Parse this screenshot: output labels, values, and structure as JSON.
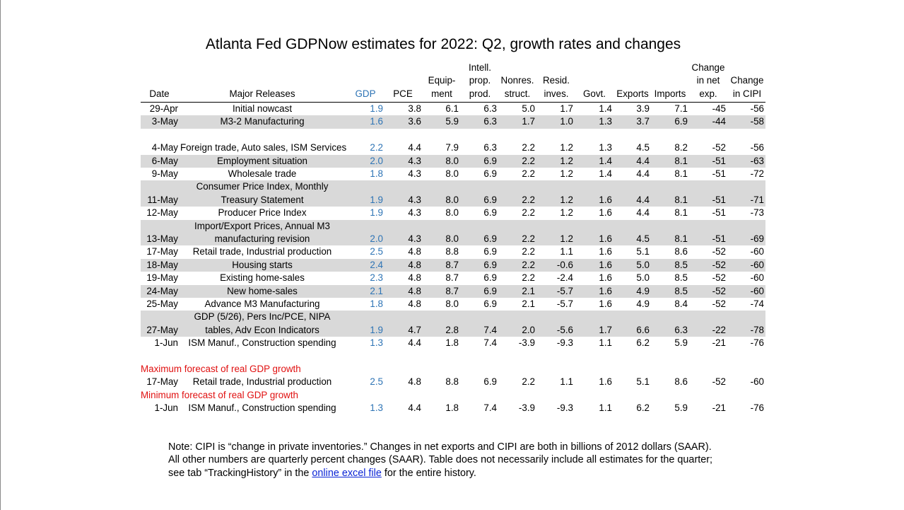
{
  "title": "Atlanta Fed GDPNow estimates for 2022: Q2, growth rates and changes",
  "colors": {
    "gdp": "#2e74b5",
    "label_red": "#e01010",
    "shade": "#d9d9d9",
    "link": "#0b25d6"
  },
  "table": {
    "headers": {
      "date": "Date",
      "release": "Major Releases",
      "gdp": "GDP",
      "pce": "PCE",
      "equip": "Equip-\nment",
      "intell": "Intell.\nprop.\nprod.",
      "nonres": "Nonres.\nstruct.",
      "resid": "Resid.\ninves.",
      "govt": "Govt.",
      "exports": "Exports",
      "imports": "Imports",
      "netexp": "Change\nin net\nexp.",
      "cipi": "Change\nin CIPI"
    },
    "rows": [
      {
        "date": "29-Apr",
        "release": "Initial nowcast",
        "gdp": "1.9",
        "pce": "3.8",
        "equip": "6.1",
        "intell": "6.3",
        "nonres": "5.0",
        "resid": "1.7",
        "govt": "1.4",
        "exports": "3.9",
        "imports": "7.1",
        "netexp": "-45",
        "cipi": "-56"
      },
      {
        "date": "3-May",
        "release": "M3-2 Manufacturing",
        "gdp": "1.6",
        "pce": "3.6",
        "equip": "5.9",
        "intell": "6.3",
        "nonres": "1.7",
        "resid": "1.0",
        "govt": "1.3",
        "exports": "3.7",
        "imports": "6.9",
        "netexp": "-44",
        "cipi": "-58"
      },
      {
        "date": "4-May",
        "release": "Foreign trade, Auto sales, ISM Services",
        "gdp": "2.2",
        "pce": "4.4",
        "equip": "7.9",
        "intell": "6.3",
        "nonres": "2.2",
        "resid": "1.2",
        "govt": "1.3",
        "exports": "4.5",
        "imports": "8.2",
        "netexp": "-52",
        "cipi": "-56"
      },
      {
        "date": "6-May",
        "release": "Employment situation",
        "gdp": "2.0",
        "pce": "4.3",
        "equip": "8.0",
        "intell": "6.9",
        "nonres": "2.2",
        "resid": "1.2",
        "govt": "1.4",
        "exports": "4.4",
        "imports": "8.1",
        "netexp": "-51",
        "cipi": "-63"
      },
      {
        "date": "9-May",
        "release": "Wholesale trade",
        "gdp": "1.8",
        "pce": "4.3",
        "equip": "8.0",
        "intell": "6.9",
        "nonres": "2.2",
        "resid": "1.2",
        "govt": "1.4",
        "exports": "4.4",
        "imports": "8.1",
        "netexp": "-51",
        "cipi": "-72"
      },
      {
        "date": "11-May",
        "release": "Consumer Price Index, Monthly Treasury Statement",
        "gdp": "1.9",
        "pce": "4.3",
        "equip": "8.0",
        "intell": "6.9",
        "nonres": "2.2",
        "resid": "1.2",
        "govt": "1.6",
        "exports": "4.4",
        "imports": "8.1",
        "netexp": "-51",
        "cipi": "-71"
      },
      {
        "date": "12-May",
        "release": "Producer Price Index",
        "gdp": "1.9",
        "pce": "4.3",
        "equip": "8.0",
        "intell": "6.9",
        "nonres": "2.2",
        "resid": "1.2",
        "govt": "1.6",
        "exports": "4.4",
        "imports": "8.1",
        "netexp": "-51",
        "cipi": "-73"
      },
      {
        "date": "13-May",
        "release": "Import/Export Prices, Annual M3 manufacturing revision",
        "gdp": "2.0",
        "pce": "4.3",
        "equip": "8.0",
        "intell": "6.9",
        "nonres": "2.2",
        "resid": "1.2",
        "govt": "1.6",
        "exports": "4.5",
        "imports": "8.1",
        "netexp": "-51",
        "cipi": "-69"
      },
      {
        "date": "17-May",
        "release": "Retail trade, Industrial production",
        "gdp": "2.5",
        "pce": "4.8",
        "equip": "8.8",
        "intell": "6.9",
        "nonres": "2.2",
        "resid": "1.1",
        "govt": "1.6",
        "exports": "5.1",
        "imports": "8.6",
        "netexp": "-52",
        "cipi": "-60"
      },
      {
        "date": "18-May",
        "release": "Housing starts",
        "gdp": "2.4",
        "pce": "4.8",
        "equip": "8.7",
        "intell": "6.9",
        "nonres": "2.2",
        "resid": "-0.6",
        "govt": "1.6",
        "exports": "5.0",
        "imports": "8.5",
        "netexp": "-52",
        "cipi": "-60"
      },
      {
        "date": "19-May",
        "release": "Existing home-sales",
        "gdp": "2.3",
        "pce": "4.8",
        "equip": "8.7",
        "intell": "6.9",
        "nonres": "2.2",
        "resid": "-2.4",
        "govt": "1.6",
        "exports": "5.0",
        "imports": "8.5",
        "netexp": "-52",
        "cipi": "-60"
      },
      {
        "date": "24-May",
        "release": "New home-sales",
        "gdp": "2.1",
        "pce": "4.8",
        "equip": "8.7",
        "intell": "6.9",
        "nonres": "2.1",
        "resid": "-5.7",
        "govt": "1.6",
        "exports": "4.9",
        "imports": "8.5",
        "netexp": "-52",
        "cipi": "-60"
      },
      {
        "date": "25-May",
        "release": "Advance M3 Manufacturing",
        "gdp": "1.8",
        "pce": "4.8",
        "equip": "8.0",
        "intell": "6.9",
        "nonres": "2.1",
        "resid": "-5.7",
        "govt": "1.6",
        "exports": "4.9",
        "imports": "8.4",
        "netexp": "-52",
        "cipi": "-74"
      },
      {
        "date": "27-May",
        "release": "GDP (5/26), Pers Inc/PCE, NIPA tables, Adv Econ Indicators",
        "gdp": "1.9",
        "pce": "4.7",
        "equip": "2.8",
        "intell": "7.4",
        "nonres": "2.0",
        "resid": "-5.6",
        "govt": "1.7",
        "exports": "6.6",
        "imports": "6.3",
        "netexp": "-22",
        "cipi": "-78"
      },
      {
        "date": "1-Jun",
        "release": "ISM Manuf., Construction spending",
        "gdp": "1.3",
        "pce": "4.4",
        "equip": "1.8",
        "intell": "7.4",
        "nonres": "-3.9",
        "resid": "-9.3",
        "govt": "1.1",
        "exports": "6.2",
        "imports": "5.9",
        "netexp": "-21",
        "cipi": "-76"
      }
    ]
  },
  "max_label": "Maximum forecast of real GDP growth",
  "max_row": {
    "date": "17-May",
    "release": "Retail trade, Industrial production",
    "gdp": "2.5",
    "pce": "4.8",
    "equip": "8.8",
    "intell": "6.9",
    "nonres": "2.2",
    "resid": "1.1",
    "govt": "1.6",
    "exports": "5.1",
    "imports": "8.6",
    "netexp": "-52",
    "cipi": "-60"
  },
  "min_label": "Minimum forecast of real GDP growth",
  "min_row": {
    "date": "1-Jun",
    "release": "ISM Manuf., Construction spending",
    "gdp": "1.3",
    "pce": "4.4",
    "equip": "1.8",
    "intell": "7.4",
    "nonres": "-3.9",
    "resid": "-9.3",
    "govt": "1.1",
    "exports": "6.2",
    "imports": "5.9",
    "netexp": "-21",
    "cipi": "-76"
  },
  "note": {
    "line1": "Note:  CIPI is “change in private inventories.”  Changes in net exports and CIPI are both in billions of 2012 dollars (SAAR).",
    "line2": "All other numbers are quarterly percent changes (SAAR).  Table does not necessarily include all estimates for the quarter;",
    "line3_pre": "see tab “TrackingHistory” in the ",
    "link": "online excel file",
    "line3_post": " for the entire history."
  }
}
